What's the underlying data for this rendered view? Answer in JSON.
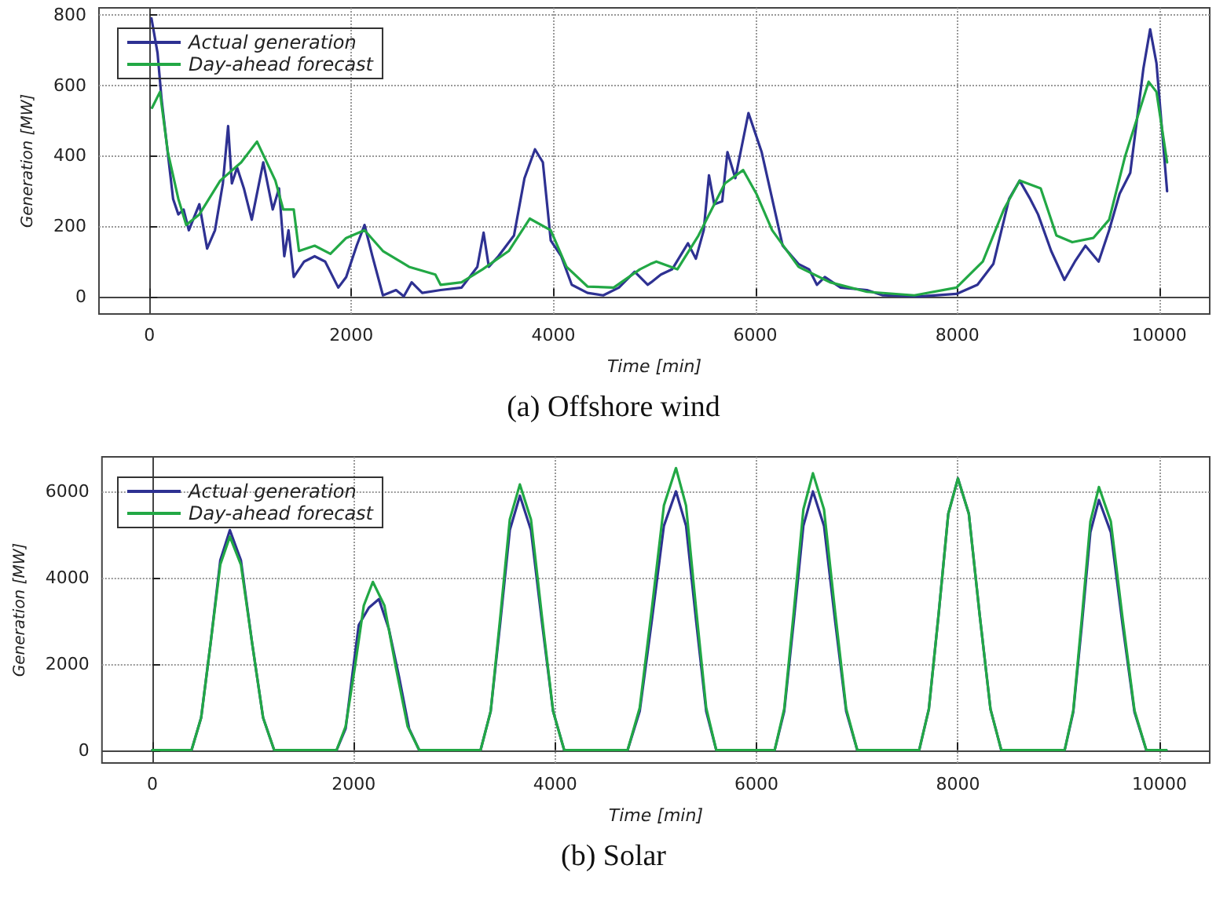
{
  "chart_data": [
    {
      "type": "line",
      "title": "(a) Offshore wind",
      "xlabel": "Time [min]",
      "ylabel": "Generation [MW]",
      "xlim": [
        -500,
        10500
      ],
      "xticks": [
        0,
        2000,
        4000,
        6000,
        8000,
        10000
      ],
      "ylim": [
        -50,
        820
      ],
      "yticks": [
        0,
        200,
        400,
        600,
        800
      ],
      "grid": true,
      "legend": "top left",
      "marker": "none",
      "line_style": "solid",
      "series": [
        {
          "name": "Actual generation",
          "color": "#2e3192",
          "x": [
            20,
            80,
            120,
            234,
            286,
            338,
            390,
            494,
            571,
            649,
            727,
            779,
            816,
            868,
            935,
            1013,
            1127,
            1221,
            1283,
            1335,
            1377,
            1429,
            1532,
            1636,
            1740,
            1870,
            1948,
            2052,
            2130,
            2208,
            2312,
            2442,
            2519,
            2597,
            2701,
            2883,
            3091,
            3247,
            3309,
            3361,
            3455,
            3610,
            3714,
            3818,
            3896,
            3974,
            4078,
            4182,
            4338,
            4494,
            4649,
            4805,
            4935,
            4968,
            5065,
            5176,
            5333,
            5411,
            5489,
            5541,
            5593,
            5672,
            5724,
            5802,
            5932,
            6063,
            6167,
            6271,
            6428,
            6532,
            6610,
            6688,
            6845,
            7105,
            7262,
            7627,
            7992,
            8200,
            8357,
            8513,
            8618,
            8722,
            8800,
            8930,
            9061,
            9165,
            9269,
            9400,
            9504,
            9608,
            9713,
            9843,
            9910,
            9973,
            10078
          ],
          "values": [
            790,
            692,
            560,
            277,
            233,
            247,
            188,
            262,
            136,
            188,
            321,
            484,
            321,
            366,
            307,
            218,
            381,
            247,
            307,
            114,
            188,
            55,
            99,
            114,
            99,
            25,
            55,
            144,
            203,
            114,
            3,
            18,
            0,
            40,
            10,
            18,
            25,
            84,
            181,
            84,
            114,
            173,
            336,
            418,
            381,
            159,
            114,
            33,
            10,
            3,
            25,
            70,
            33,
            40,
            62,
            77,
            151,
            107,
            188,
            344,
            262,
            270,
            410,
            336,
            521,
            410,
            277,
            144,
            92,
            77,
            33,
            55,
            25,
            18,
            3,
            0,
            7,
            33,
            92,
            277,
            329,
            277,
            233,
            129,
            47,
            99,
            144,
            99,
            188,
            292,
            351,
            647,
            759,
            662,
            299
          ]
        },
        {
          "name": "Day-ahead forecast",
          "color": "#22a845",
          "x": [
            26,
            104,
            182,
            286,
            364,
            494,
            701,
            909,
            1065,
            1247,
            1325,
            1429,
            1481,
            1636,
            1792,
            1948,
            2130,
            2312,
            2571,
            2831,
            2883,
            3091,
            3299,
            3558,
            3766,
            3974,
            4130,
            4338,
            4597,
            4857,
            4961,
            5020,
            5228,
            5437,
            5698,
            5880,
            6010,
            6167,
            6428,
            6740,
            7105,
            7575,
            7992,
            8253,
            8461,
            8618,
            8826,
            8982,
            9139,
            9347,
            9504,
            9660,
            9895,
            9973,
            10078
          ],
          "values": [
            536,
            581,
            410,
            277,
            203,
            233,
            329,
            381,
            440,
            329,
            247,
            247,
            129,
            144,
            121,
            166,
            188,
            129,
            84,
            62,
            33,
            40,
            77,
            129,
            221,
            188,
            84,
            28,
            25,
            77,
            92,
            99,
            77,
            173,
            321,
            359,
            292,
            188,
            84,
            40,
            13,
            3,
            25,
            99,
            247,
            329,
            307,
            173,
            154,
            166,
            218,
            396,
            610,
            581,
            381
          ]
        }
      ]
    },
    {
      "type": "line",
      "title": "(b) Solar",
      "xlabel": "Time [min]",
      "ylabel": "Generation [MW]",
      "xlim": [
        -500,
        10500
      ],
      "xticks": [
        0,
        2000,
        4000,
        6000,
        8000,
        10000
      ],
      "ylim": [
        -300,
        6800
      ],
      "yticks": [
        0,
        2000,
        4000,
        6000
      ],
      "grid": true,
      "legend": "top left",
      "marker": "none",
      "line_style": "solid",
      "series": [
        {
          "name": "Actual generation",
          "color": "#2e3192",
          "x": [
            0,
            390,
            485,
            580,
            675,
            770,
            880,
            990,
            1100,
            1210,
            1830,
            1920,
            2000,
            2050,
            2150,
            2250,
            2350,
            2450,
            2550,
            2650,
            3260,
            3360,
            3455,
            3550,
            3650,
            3760,
            3870,
            3980,
            4090,
            4720,
            4840,
            4960,
            5080,
            5200,
            5300,
            5400,
            5500,
            5600,
            6180,
            6275,
            6370,
            6465,
            6560,
            6670,
            6780,
            6890,
            7000,
            7615,
            7711,
            7808,
            7904,
            8000,
            8108,
            8215,
            8323,
            8430,
            9060,
            9145,
            9230,
            9315,
            9400,
            9518,
            9635,
            9753,
            9870,
            10070
          ],
          "values": [
            0,
            0,
            750,
            2500,
            4400,
            5100,
            4400,
            2500,
            750,
            0,
            0,
            500,
            2000,
            2900,
            3300,
            3500,
            2800,
            1700,
            500,
            0,
            0,
            900,
            2950,
            5100,
            5900,
            5100,
            2950,
            900,
            0,
            0,
            900,
            3000,
            5200,
            6000,
            5200,
            3000,
            900,
            0,
            0,
            900,
            3000,
            5200,
            6000,
            5200,
            3000,
            900,
            0,
            0,
            950,
            3150,
            5480,
            6300,
            5480,
            3150,
            950,
            0,
            0,
            880,
            2900,
            5050,
            5800,
            5050,
            2900,
            880,
            0,
            0
          ]
        },
        {
          "name": "Day-ahead forecast",
          "color": "#22a845",
          "x": [
            0,
            390,
            485,
            580,
            675,
            770,
            880,
            990,
            1100,
            1210,
            1830,
            1920,
            2010,
            2100,
            2190,
            2305,
            2420,
            2535,
            2650,
            3260,
            3360,
            3455,
            3550,
            3650,
            3760,
            3870,
            3980,
            4090,
            4720,
            4840,
            4960,
            5080,
            5200,
            5300,
            5400,
            5500,
            5600,
            6180,
            6275,
            6370,
            6465,
            6560,
            6670,
            6780,
            6890,
            7000,
            7615,
            7711,
            7808,
            7904,
            8000,
            8108,
            8215,
            8323,
            8430,
            9060,
            9145,
            9230,
            9315,
            9400,
            9518,
            9635,
            9753,
            9870,
            10070
          ],
          "values": [
            0,
            0,
            750,
            2500,
            4300,
            4950,
            4300,
            2500,
            750,
            0,
            0,
            550,
            1900,
            3350,
            3900,
            3350,
            1900,
            550,
            0,
            0,
            900,
            3080,
            5350,
            6160,
            5350,
            3080,
            900,
            0,
            0,
            980,
            3270,
            5670,
            6540,
            5670,
            3270,
            980,
            0,
            0,
            960,
            3210,
            5580,
            6420,
            5580,
            3210,
            960,
            0,
            0,
            950,
            3150,
            5480,
            6300,
            5480,
            3150,
            950,
            0,
            0,
            920,
            3050,
            5300,
            6100,
            5300,
            3050,
            920,
            0,
            0
          ]
        }
      ]
    }
  ]
}
